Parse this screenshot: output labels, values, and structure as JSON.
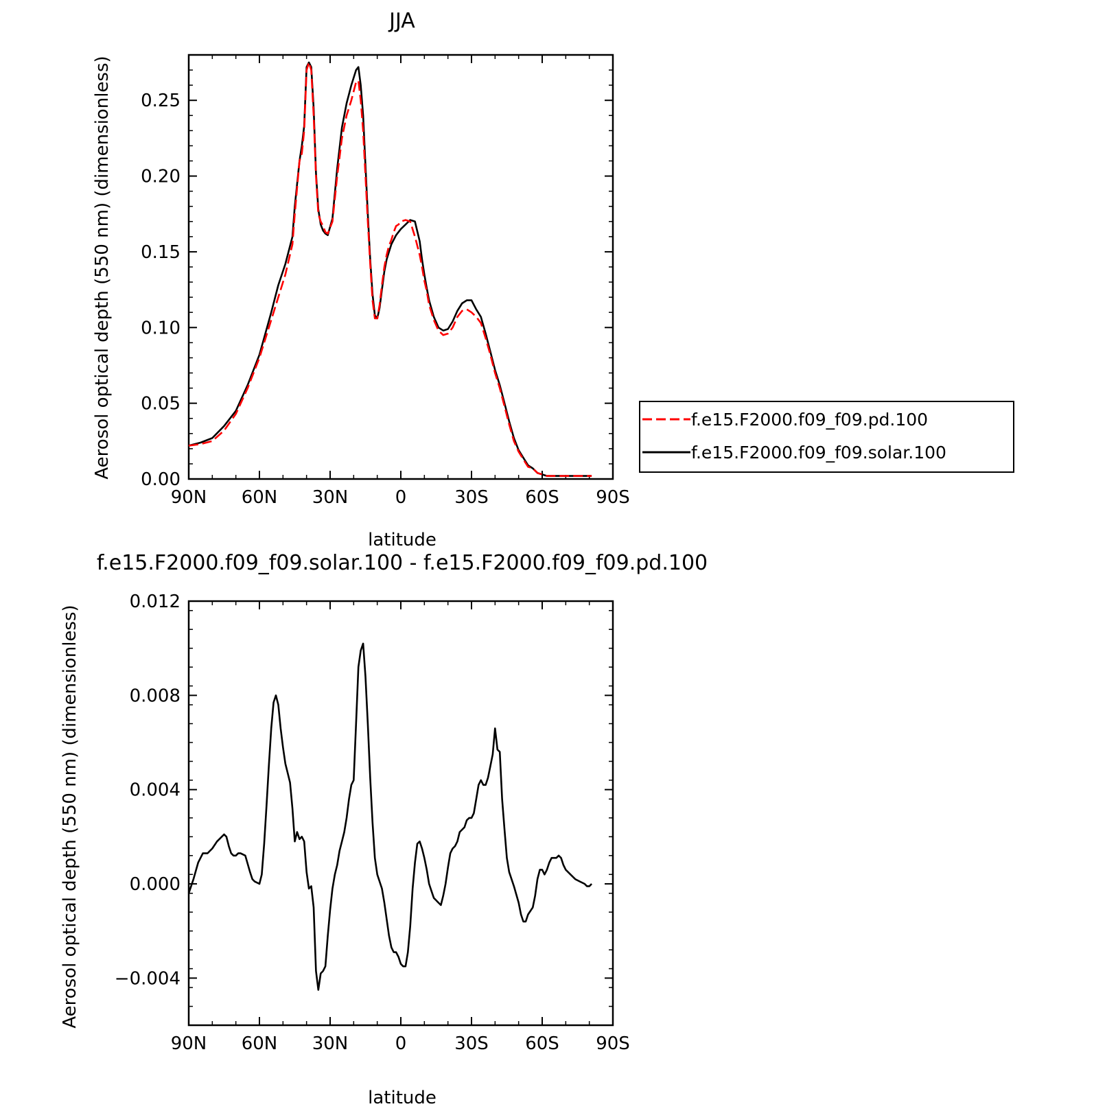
{
  "chart_data": [
    {
      "type": "line",
      "title": "JJA",
      "xlabel": "latitude",
      "ylabel": "Aerosol optical depth (550 nm) (dimensionless)",
      "xlim": [
        90,
        -90
      ],
      "ylim": [
        0,
        0.28
      ],
      "xticks": [
        90,
        60,
        30,
        0,
        -30,
        -60,
        -90
      ],
      "xtick_labels": [
        "90N",
        "60N",
        "30N",
        "0",
        "30S",
        "60S",
        "90S"
      ],
      "yticks": [
        0,
        0.05,
        0.1,
        0.15,
        0.2,
        0.25
      ],
      "ytick_labels": [
        "0.00",
        "0.05",
        "0.10",
        "0.15",
        "0.20",
        "0.25"
      ],
      "legend_position": "right",
      "series": [
        {
          "name": "f.e15.F2000.f09_f09.pd.100",
          "color": "#ff0000",
          "dash": "dashed",
          "x": [
            90,
            85,
            80,
            75,
            70,
            65,
            60,
            55,
            52,
            49,
            46,
            45,
            43,
            42,
            41,
            40,
            39,
            38,
            37,
            36,
            35,
            34,
            33,
            32,
            31,
            29,
            27,
            25,
            23,
            21,
            19,
            18,
            17,
            16,
            15,
            14,
            13,
            12,
            11,
            10,
            9,
            8,
            7,
            6,
            5,
            4,
            3,
            2,
            1,
            0,
            -2,
            -4,
            -6,
            -8,
            -9,
            -10,
            -11,
            -12,
            -14,
            -16,
            -18,
            -20,
            -22,
            -24,
            -26,
            -28,
            -30,
            -32,
            -34,
            -36,
            -38,
            -40,
            -42,
            -44,
            -46,
            -48,
            -50,
            -52,
            -54,
            -56,
            -58,
            -60,
            -62,
            -64,
            -66,
            -68,
            -69,
            -70,
            -71,
            -72,
            -73,
            -74,
            -76,
            -78,
            -80,
            -81
          ],
          "y": [
            0.022,
            0.023,
            0.025,
            0.032,
            0.043,
            0.06,
            0.08,
            0.105,
            0.12,
            0.135,
            0.155,
            0.175,
            0.21,
            0.215,
            0.23,
            0.27,
            0.275,
            0.27,
            0.24,
            0.2,
            0.175,
            0.17,
            0.167,
            0.163,
            0.162,
            0.17,
            0.2,
            0.225,
            0.24,
            0.25,
            0.262,
            0.263,
            0.25,
            0.23,
            0.2,
            0.17,
            0.142,
            0.118,
            0.106,
            0.106,
            0.115,
            0.128,
            0.14,
            0.148,
            0.154,
            0.158,
            0.163,
            0.167,
            0.168,
            0.17,
            0.171,
            0.17,
            0.16,
            0.148,
            0.14,
            0.131,
            0.124,
            0.115,
            0.105,
            0.098,
            0.095,
            0.096,
            0.1,
            0.107,
            0.111,
            0.112,
            0.11,
            0.107,
            0.103,
            0.093,
            0.082,
            0.07,
            0.06,
            0.048,
            0.036,
            0.025,
            0.018,
            0.013,
            0.008,
            0.007,
            0.004,
            0.003,
            0.002,
            0.002,
            0.002,
            0.002,
            0.002,
            0.002,
            0.002,
            0.002,
            0.002,
            0.002,
            0.002,
            0.002,
            0.002,
            0.002
          ]
        },
        {
          "name": "f.e15.F2000.f09_f09.solar.100",
          "color": "#000000",
          "dash": "solid",
          "x": [
            90,
            85,
            80,
            75,
            70,
            65,
            60,
            55,
            52,
            49,
            46,
            45,
            43,
            42,
            41,
            40,
            39,
            38,
            37,
            36,
            35,
            34,
            33,
            32,
            31,
            29,
            27,
            25,
            23,
            21,
            19,
            18,
            17,
            16,
            15,
            14,
            13,
            12,
            11,
            10,
            9,
            8,
            7,
            6,
            5,
            4,
            3,
            2,
            1,
            0,
            -2,
            -4,
            -6,
            -8,
            -9,
            -10,
            -11,
            -12,
            -14,
            -16,
            -18,
            -20,
            -22,
            -24,
            -26,
            -28,
            -30,
            -32,
            -34,
            -36,
            -38,
            -40,
            -42,
            -44,
            -46,
            -48,
            -50,
            -52,
            -54,
            -56,
            -58,
            -60,
            -62,
            -64,
            -66,
            -68,
            -69,
            -70,
            -71,
            -72,
            -73,
            -74,
            -76,
            -78,
            -80,
            -81
          ],
          "y": [
            0.022,
            0.024,
            0.027,
            0.035,
            0.045,
            0.062,
            0.082,
            0.11,
            0.128,
            0.142,
            0.16,
            0.18,
            0.21,
            0.22,
            0.233,
            0.272,
            0.275,
            0.272,
            0.245,
            0.202,
            0.178,
            0.168,
            0.164,
            0.162,
            0.161,
            0.172,
            0.205,
            0.232,
            0.248,
            0.26,
            0.27,
            0.272,
            0.26,
            0.24,
            0.207,
            0.175,
            0.145,
            0.122,
            0.108,
            0.106,
            0.113,
            0.125,
            0.137,
            0.145,
            0.15,
            0.155,
            0.158,
            0.161,
            0.163,
            0.165,
            0.168,
            0.171,
            0.17,
            0.157,
            0.145,
            0.135,
            0.126,
            0.118,
            0.107,
            0.1,
            0.098,
            0.099,
            0.104,
            0.111,
            0.116,
            0.118,
            0.118,
            0.112,
            0.107,
            0.096,
            0.084,
            0.072,
            0.062,
            0.05,
            0.038,
            0.027,
            0.019,
            0.014,
            0.009,
            0.007,
            0.004,
            0.003,
            0.002,
            0.002,
            0.002,
            0.002,
            0.002,
            0.002,
            0.002,
            0.002,
            0.002,
            0.002,
            0.002,
            0.002,
            0.002,
            0.002
          ]
        }
      ]
    },
    {
      "type": "line",
      "title": "f.e15.F2000.f09_f09.solar.100 - f.e15.F2000.f09_f09.pd.100",
      "xlabel": "latitude",
      "ylabel": "Aerosol optical depth (550 nm) (dimensionless)",
      "xlim": [
        90,
        -90
      ],
      "ylim": [
        -0.006,
        0.012
      ],
      "xticks": [
        90,
        60,
        30,
        0,
        -30,
        -60,
        -90
      ],
      "xtick_labels": [
        "90N",
        "60N",
        "30N",
        "0",
        "30S",
        "60S",
        "90S"
      ],
      "yticks": [
        -0.004,
        0,
        0.004,
        0.008,
        0.012
      ],
      "ytick_labels": [
        "−0.004",
        "0.000",
        "0.004",
        "0.008",
        "0.012"
      ],
      "series": [
        {
          "color": "#000000",
          "dash": "solid",
          "x": [
            90,
            88,
            86,
            84,
            82,
            81,
            80,
            78,
            77,
            76,
            75,
            74,
            73,
            72,
            71,
            70,
            69,
            68,
            66,
            64,
            63,
            62,
            60,
            59,
            58,
            57,
            56,
            55,
            54,
            53,
            52,
            51,
            50,
            49,
            48,
            47,
            46,
            45,
            44,
            43,
            42,
            41,
            40,
            39,
            38,
            37,
            36,
            35,
            34,
            33,
            32,
            31,
            30,
            29,
            28,
            27,
            26,
            25,
            24,
            23,
            22,
            21,
            20,
            19,
            18,
            17,
            16,
            15,
            14,
            13,
            12,
            11,
            10,
            9,
            8,
            7,
            6,
            5,
            4,
            3,
            2,
            1,
            0,
            -1,
            -2,
            -3,
            -4,
            -5,
            -6,
            -7,
            -8,
            -9,
            -10,
            -11,
            -12,
            -13,
            -14,
            -15,
            -16,
            -17,
            -18,
            -19,
            -20,
            -21,
            -22,
            -23,
            -24,
            -25,
            -26,
            -27,
            -28,
            -29,
            -30,
            -31,
            -32,
            -33,
            -34,
            -35,
            -36,
            -37,
            -38,
            -39,
            -40,
            -41,
            -42,
            -43,
            -44,
            -45,
            -46,
            -48,
            -50,
            -51,
            -52,
            -53,
            -54,
            -56,
            -57,
            -58,
            -59,
            -60,
            -61,
            -62,
            -63,
            -64,
            -65,
            -66,
            -67,
            -68,
            -69,
            -70,
            -72,
            -74,
            -76,
            -78,
            -79,
            -80,
            -81
          ],
          "y": [
            -0.0004,
            0.0002,
            0.0009,
            0.0013,
            0.0013,
            0.0014,
            0.0015,
            0.0018,
            0.0019,
            0.002,
            0.0021,
            0.002,
            0.0016,
            0.0013,
            0.0012,
            0.0012,
            0.0013,
            0.0013,
            0.0012,
            0.0005,
            0.0002,
            0.0001,
            0.0,
            0.0004,
            0.0017,
            0.0033,
            0.005,
            0.0066,
            0.0077,
            0.008,
            0.0076,
            0.0066,
            0.0058,
            0.0051,
            0.0047,
            0.0043,
            0.0032,
            0.0018,
            0.0022,
            0.0019,
            0.002,
            0.0018,
            0.0005,
            -0.0002,
            -0.0001,
            -0.001,
            -0.0037,
            -0.0045,
            -0.0038,
            -0.0037,
            -0.0035,
            -0.0022,
            -0.0011,
            -0.0002,
            0.0004,
            0.0008,
            0.0014,
            0.0018,
            0.0022,
            0.0028,
            0.0036,
            0.0042,
            0.0044,
            0.0068,
            0.0092,
            0.0099,
            0.0102,
            0.0088,
            0.0068,
            0.0045,
            0.0026,
            0.0011,
            0.0004,
            0.0001,
            -0.0002,
            -0.0008,
            -0.0015,
            -0.0022,
            -0.0027,
            -0.0029,
            -0.0029,
            -0.0031,
            -0.0034,
            -0.0035,
            -0.0035,
            -0.0029,
            -0.0018,
            -0.0002,
            0.0009,
            0.0017,
            0.0018,
            0.0015,
            0.0011,
            0.0006,
            0.0,
            -0.0003,
            -0.0006,
            -0.0007,
            -0.0008,
            -0.0009,
            -0.0005,
            0.0,
            0.0007,
            0.0013,
            0.0015,
            0.0016,
            0.0018,
            0.0022,
            0.0023,
            0.0024,
            0.0027,
            0.0028,
            0.0028,
            0.003,
            0.0036,
            0.0042,
            0.0044,
            0.0042,
            0.0042,
            0.0045,
            0.005,
            0.0055,
            0.0066,
            0.0057,
            0.0056,
            0.0036,
            0.0023,
            0.0011,
            0.0005,
            -0.0001,
            -0.0008,
            -0.0013,
            -0.0016,
            -0.0016,
            -0.0013,
            -0.001,
            -0.0005,
            0.0002,
            0.0006,
            0.0006,
            0.0004,
            0.0006,
            0.0009,
            0.0011,
            0.0011,
            0.0011,
            0.0012,
            0.0011,
            0.0008,
            0.0006,
            0.0004,
            0.0002,
            0.0001,
            0.0,
            -0.0001,
            -0.0001,
            0.0
          ]
        }
      ]
    }
  ],
  "legend": {
    "entries": [
      "f.e15.F2000.f09_f09.pd.100",
      "f.e15.F2000.f09_f09.solar.100"
    ]
  }
}
